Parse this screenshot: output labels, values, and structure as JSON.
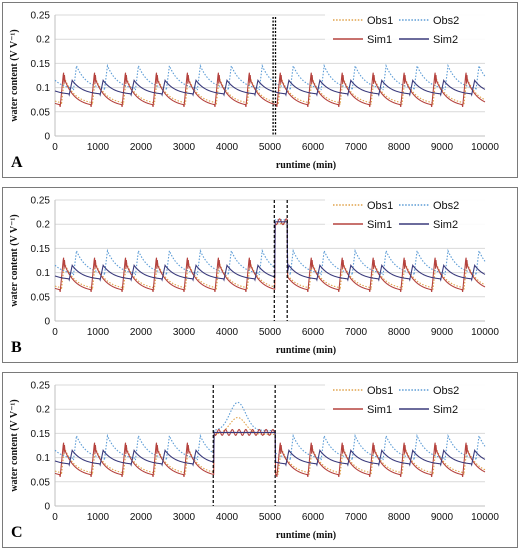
{
  "chart_data": [
    {
      "panel_label": "A",
      "type": "line",
      "xlabel": "runtime (min)",
      "ylabel": "water content (V V⁻¹)",
      "xlim": [
        0,
        10000
      ],
      "ylim": [
        0,
        0.25
      ],
      "x_ticks": [
        "0",
        "1000",
        "2000",
        "3000",
        "4000",
        "5000",
        "6000",
        "7000",
        "8000",
        "9000",
        "10000"
      ],
      "y_ticks": [
        "0",
        "0.05",
        "0.1",
        "0.15",
        "0.2",
        "0.25"
      ],
      "legend_position": "top-right",
      "event_lines_x": [
        5100
      ],
      "event_line_style": "double-dotted",
      "cycle_period": 720,
      "series": [
        {
          "name": "Obs1",
          "style": "dotted",
          "color": "#e0a24a",
          "base": 0.065,
          "peak": 0.12
        },
        {
          "name": "Obs2",
          "style": "dotted",
          "color": "#5b9bd5",
          "base": 0.095,
          "peak": 0.145
        },
        {
          "name": "Sim1",
          "style": "solid",
          "color": "#b5433f",
          "base": 0.06,
          "peak": 0.125
        },
        {
          "name": "Sim2",
          "style": "solid",
          "color": "#3b3b7c",
          "base": 0.085,
          "peak": 0.115
        }
      ]
    },
    {
      "panel_label": "B",
      "type": "line",
      "xlabel": "runtime (min)",
      "ylabel": "water content (V V⁻¹)",
      "xlim": [
        0,
        10000
      ],
      "ylim": [
        0,
        0.25
      ],
      "x_ticks": [
        "0",
        "1000",
        "2000",
        "3000",
        "4000",
        "5000",
        "6000",
        "7000",
        "8000",
        "9000",
        "10000"
      ],
      "y_ticks": [
        "0",
        "0.05",
        "0.1",
        "0.15",
        "0.2",
        "0.25"
      ],
      "legend_position": "top-right",
      "event_lines_x": [
        5100,
        5400
      ],
      "event_line_style": "dashed",
      "plateau": {
        "start": 5120,
        "end": 5400,
        "value": 0.205
      },
      "cycle_period": 720,
      "series": [
        {
          "name": "Obs1",
          "style": "dotted",
          "color": "#e0a24a",
          "base": 0.065,
          "peak": 0.12
        },
        {
          "name": "Obs2",
          "style": "dotted",
          "color": "#5b9bd5",
          "base": 0.095,
          "peak": 0.145
        },
        {
          "name": "Sim1",
          "style": "solid",
          "color": "#b5433f",
          "base": 0.06,
          "peak": 0.125
        },
        {
          "name": "Sim2",
          "style": "solid",
          "color": "#3b3b7c",
          "base": 0.085,
          "peak": 0.115
        }
      ]
    },
    {
      "panel_label": "C",
      "type": "line",
      "xlabel": "runtime (min)",
      "ylabel": "water content (V V⁻¹)",
      "xlim": [
        0,
        10000
      ],
      "ylim": [
        0,
        0.25
      ],
      "x_ticks": [
        "0",
        "1000",
        "2000",
        "3000",
        "4000",
        "5000",
        "6000",
        "7000",
        "8000",
        "9000",
        "10000"
      ],
      "y_ticks": [
        "0",
        "0.05",
        "0.1",
        "0.15",
        "0.2",
        "0.25"
      ],
      "legend_position": "top-right",
      "event_lines_x": [
        3680,
        5120
      ],
      "event_line_style": "dashed",
      "plateau": {
        "start": 3700,
        "end": 5120,
        "value": 0.152
      },
      "obs_bump": {
        "x": 4250,
        "value": 0.21
      },
      "cycle_period": 720,
      "series": [
        {
          "name": "Obs1",
          "style": "dotted",
          "color": "#e0a24a",
          "base": 0.065,
          "peak": 0.12
        },
        {
          "name": "Obs2",
          "style": "dotted",
          "color": "#5b9bd5",
          "base": 0.095,
          "peak": 0.145
        },
        {
          "name": "Sim1",
          "style": "solid",
          "color": "#b5433f",
          "base": 0.06,
          "peak": 0.125
        },
        {
          "name": "Sim2",
          "style": "solid",
          "color": "#3b3b7c",
          "base": 0.085,
          "peak": 0.115
        }
      ]
    }
  ]
}
